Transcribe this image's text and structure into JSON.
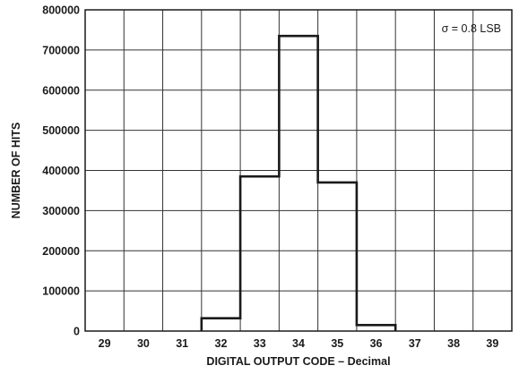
{
  "chart_data": {
    "type": "bar",
    "style": "histogram-step",
    "categories": [
      "29",
      "30",
      "31",
      "32",
      "33",
      "34",
      "35",
      "36",
      "37",
      "38",
      "39"
    ],
    "values": [
      0,
      0,
      0,
      32000,
      385000,
      735000,
      370000,
      15000,
      0,
      0,
      0
    ],
    "ylim": [
      0,
      800000
    ],
    "yticks": [
      "0",
      "100000",
      "200000",
      "300000",
      "400000",
      "500000",
      "600000",
      "700000",
      "800000"
    ],
    "xlabel": "DIGITAL OUTPUT CODE – Decimal",
    "ylabel": "NUMBER OF HITS",
    "annotation": "σ = 0.8 LSB",
    "grid": true,
    "colors": {
      "line": "#1a1a1a",
      "grid": "#333333",
      "text": "#1a1a1a"
    }
  }
}
